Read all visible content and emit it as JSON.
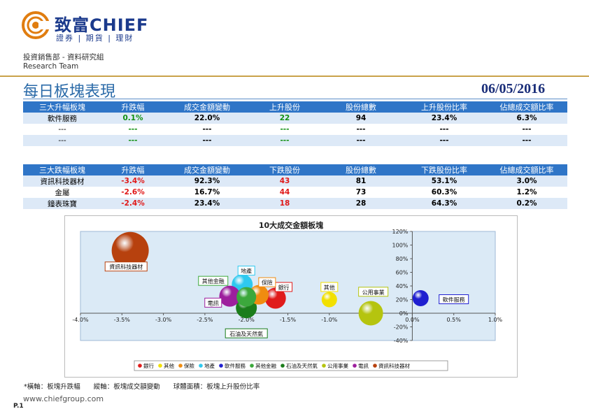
{
  "header": {
    "brand_name": "致富CHIEF",
    "brand_tagline": "證券 | 期貨 | 理財",
    "department": "投資銷售部 - 資料研究組",
    "team": "Research Team",
    "page_title": "每日板塊表現",
    "date": "06/05/2016",
    "colors": {
      "brand": "#1b3a8c",
      "logo_orange": "#e07d10",
      "gold_rule": "#c9a24a",
      "table_header": "#2f75c7"
    }
  },
  "top_table": {
    "columns": [
      "三大升幅板塊",
      "升跌幅",
      "成交金額變動",
      "上升股份",
      "股份總數",
      "上升股份比率",
      "佔總成交額比率"
    ],
    "rows": [
      [
        "軟件服務",
        "0.1%",
        "22.0%",
        "22",
        "94",
        "23.4%",
        "6.3%"
      ],
      [
        "---",
        "---",
        "---",
        "---",
        "---",
        "---",
        "---"
      ],
      [
        "---",
        "---",
        "---",
        "---",
        "---",
        "---",
        "---"
      ]
    ]
  },
  "bottom_table": {
    "columns": [
      "三大跌幅板塊",
      "升跌幅",
      "成交金額變動",
      "下跌股份",
      "股份總數",
      "下跌股份比率",
      "佔總成交額比率"
    ],
    "rows": [
      [
        "資訊科技器材",
        "-3.4%",
        "92.3%",
        "43",
        "81",
        "53.1%",
        "3.0%"
      ],
      [
        "金屬",
        "-2.6%",
        "16.7%",
        "44",
        "73",
        "60.3%",
        "1.2%"
      ],
      [
        "鐘表珠寶",
        "-2.4%",
        "23.4%",
        "18",
        "28",
        "64.3%",
        "0.2%"
      ]
    ]
  },
  "chart_data": {
    "type": "scatter",
    "subtype": "bubble",
    "title": "10大成交金額板塊",
    "xlim": [
      -4.0,
      1.0
    ],
    "ylim": [
      -40,
      120
    ],
    "x_ticks": [
      "-4.0%",
      "-3.5%",
      "-3.0%",
      "-2.5%",
      "-2.0%",
      "-1.5%",
      "-1.0%",
      "-0.5%",
      "0.0%",
      "0.5%",
      "1.0%"
    ],
    "y_ticks": [
      "120%",
      "100%",
      "80%",
      "60%",
      "40%",
      "20%",
      "0%",
      "-20%",
      "-40%"
    ],
    "series": [
      {
        "name": "銀行",
        "x": -1.65,
        "y": 22,
        "size": 30,
        "color": "#e01b1b",
        "label": "銀行"
      },
      {
        "name": "其他",
        "x": -1.0,
        "y": 20,
        "size": 22,
        "color": "#f2e000",
        "label": "其他"
      },
      {
        "name": "保險",
        "x": -1.85,
        "y": 27,
        "size": 28,
        "color": "#f08c10",
        "label": "保險"
      },
      {
        "name": "地產",
        "x": -2.05,
        "y": 42,
        "size": 30,
        "color": "#2ec9ef",
        "label": "地產"
      },
      {
        "name": "軟件服務",
        "x": 0.1,
        "y": 22,
        "size": 23,
        "color": "#1f1fd0",
        "label": "軟件服務"
      },
      {
        "name": "其他金融",
        "x": -2.0,
        "y": 24,
        "size": 28,
        "color": "#3ca83c",
        "label": "其他金融"
      },
      {
        "name": "石油及天然氣",
        "x": -2.0,
        "y": 8,
        "size": 30,
        "color": "#1b7d1b",
        "label": "石油及天然氣"
      },
      {
        "name": "公用事業",
        "x": -0.5,
        "y": 0,
        "size": 35,
        "color": "#b5c40f",
        "label": "公用事業"
      },
      {
        "name": "電訊",
        "x": -2.2,
        "y": 25,
        "size": 30,
        "color": "#9d1f9d",
        "label": "電訊"
      },
      {
        "name": "資訊科技器材",
        "x": -3.4,
        "y": 92,
        "size": 53,
        "color": "#b7410e",
        "label": "資訊科技器材"
      }
    ],
    "legend": "bottom",
    "footnote": "*橫軸：板塊升跌幅　　縱軸：板塊成交額變動　　球體面積：板塊上升股份比率"
  },
  "footer": {
    "website": "www.chiefgroup.com",
    "page_number": "P.1"
  }
}
